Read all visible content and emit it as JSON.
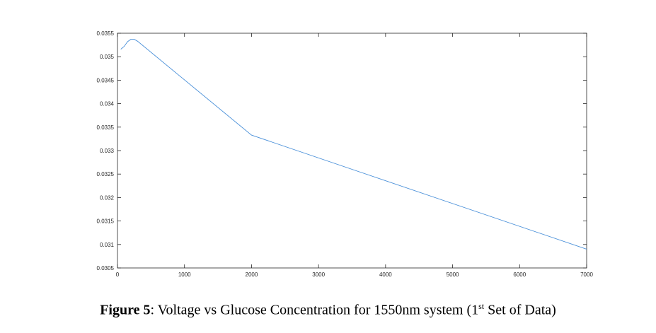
{
  "chart_data": {
    "type": "line",
    "title": "",
    "xlabel": "",
    "ylabel": "",
    "xlim": [
      0,
      7000
    ],
    "ylim": [
      0.0305,
      0.0355
    ],
    "grid": false,
    "x_ticks": [
      "0",
      "1000",
      "2000",
      "3000",
      "4000",
      "5000",
      "6000",
      "7000"
    ],
    "y_ticks": [
      "0.0305",
      "0.031",
      "0.0315",
      "0.032",
      "0.0325",
      "0.033",
      "0.0335",
      "0.034",
      "0.0345",
      "0.035",
      "0.0355"
    ],
    "line_color": "#4a90d9",
    "series": [
      {
        "x": [
          50,
          100,
          150,
          200,
          250,
          300,
          2000,
          7000
        ],
        "y": [
          0.03516,
          0.03522,
          0.03532,
          0.03537,
          0.03537,
          0.03533,
          0.03333,
          0.0309
        ]
      }
    ]
  },
  "caption": {
    "label": "Figure 5",
    "text_before": ": Voltage vs Glucose Concentration for 1550nm system (1",
    "superscript": "st",
    "text_after": " Set of Data)"
  }
}
